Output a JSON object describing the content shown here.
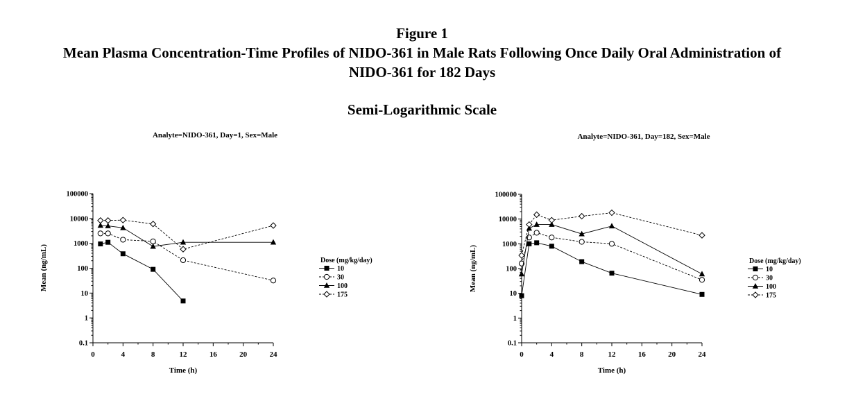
{
  "figure": {
    "number": "Figure 1",
    "title_line1": "Mean Plasma Concentration-Time Profiles of NIDO-361 in Male Rats Following Once Daily Oral Administration of",
    "title_line2": "NIDO-361 for 182 Days",
    "scale": "Semi-Logarithmic Scale"
  },
  "chart_data": [
    {
      "type": "line",
      "title": "Analyte=NIDO-361, Day=1, Sex=Male",
      "xlabel": "Time (h)",
      "ylabel": "Mean (ng/mL)",
      "yscale": "log",
      "xlim": [
        0,
        24
      ],
      "ylim": [
        0.1,
        100000
      ],
      "xticks": [
        0,
        4,
        8,
        12,
        16,
        20,
        24
      ],
      "yticks": [
        0.1,
        1,
        10,
        100,
        1000,
        10000,
        100000
      ],
      "ytick_labels": [
        "0.1",
        "1",
        "10",
        "100",
        "1000",
        "10000",
        "100000"
      ],
      "grid": false,
      "legend_title": "Dose (mg/kg/day)",
      "legend_position": "right",
      "series": [
        {
          "name": "10",
          "marker": "square-filled",
          "dash": "solid",
          "x": [
            1,
            2,
            4,
            8,
            12
          ],
          "y": [
            950,
            1100,
            380,
            90,
            4.8
          ]
        },
        {
          "name": "30",
          "marker": "circle-open",
          "dash": "dashed",
          "x": [
            1,
            2,
            4,
            8,
            12,
            24
          ],
          "y": [
            2500,
            2500,
            1400,
            1200,
            210,
            32
          ]
        },
        {
          "name": "100",
          "marker": "triangle-filled",
          "dash": "solid",
          "x": [
            1,
            2,
            4,
            8,
            12,
            24
          ],
          "y": [
            5200,
            5000,
            4200,
            750,
            1100,
            1100
          ]
        },
        {
          "name": "175",
          "marker": "diamond-open",
          "dash": "dashed",
          "x": [
            1,
            2,
            4,
            8,
            12,
            24
          ],
          "y": [
            8300,
            8300,
            8600,
            6000,
            580,
            5200
          ]
        }
      ]
    },
    {
      "type": "line",
      "title": "Analyte=NIDO-361, Day=182, Sex=Male",
      "xlabel": "Time (h)",
      "ylabel": "Mean (ng/mL)",
      "yscale": "log",
      "xlim": [
        0,
        24
      ],
      "ylim": [
        0.1,
        100000
      ],
      "xticks": [
        0,
        4,
        8,
        12,
        16,
        20,
        24
      ],
      "yticks": [
        0.1,
        1,
        10,
        100,
        1000,
        10000,
        100000
      ],
      "ytick_labels": [
        "0.1",
        "1",
        "10",
        "100",
        "1000",
        "10000",
        "100000"
      ],
      "grid": false,
      "legend_title": "Dose (mg/kg/day)",
      "legend_position": "right",
      "series": [
        {
          "name": "10",
          "marker": "square-filled",
          "dash": "solid",
          "x": [
            0,
            1,
            2,
            4,
            8,
            12,
            24
          ],
          "y": [
            8,
            1000,
            1100,
            800,
            190,
            65,
            9
          ]
        },
        {
          "name": "30",
          "marker": "circle-open",
          "dash": "dashed",
          "x": [
            0,
            1,
            2,
            4,
            8,
            12,
            24
          ],
          "y": [
            160,
            1800,
            2800,
            1800,
            1200,
            1000,
            35
          ]
        },
        {
          "name": "100",
          "marker": "triangle-filled",
          "dash": "solid",
          "x": [
            0,
            1,
            2,
            4,
            8,
            12,
            24
          ],
          "y": [
            60,
            4200,
            6000,
            6000,
            2500,
            5200,
            60
          ]
        },
        {
          "name": "175",
          "marker": "diamond-open",
          "dash": "dashed",
          "x": [
            0,
            1,
            2,
            4,
            8,
            12,
            24
          ],
          "y": [
            340,
            6000,
            15000,
            9000,
            13000,
            18000,
            2200
          ]
        }
      ]
    }
  ]
}
